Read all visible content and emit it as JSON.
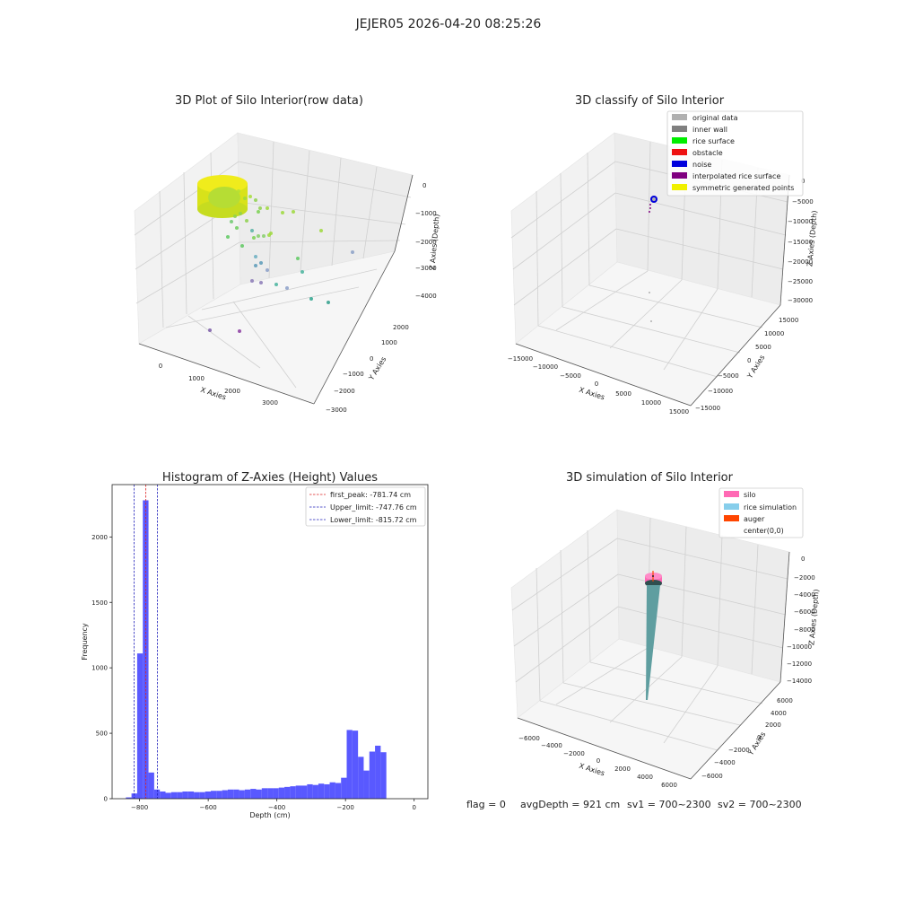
{
  "suptitle": "JEJER05 2026-04-20 08:25:26",
  "status": {
    "flag": "flag = 0",
    "avg": "avgDepth = 921 cm",
    "sv1": "sv1 = 700~2300",
    "sv2": "sv2 = 700~2300"
  },
  "chart_data": [
    {
      "type": "scatter",
      "title": "3D Plot of Silo Interior(row data)",
      "xlabel": "X Axies",
      "ylabel": "Y Axies",
      "zlabel": "Z Axies (Depth)",
      "xticks": [
        "0",
        "1000",
        "2000",
        "3000"
      ],
      "yticks": [
        "−3000",
        "−2000",
        "−1000",
        "0",
        "1000",
        "2000"
      ],
      "zticks": [
        "0",
        "−1000",
        "−2000",
        "−3000",
        "−4000"
      ]
    },
    {
      "type": "scatter",
      "title": "3D classify of Silo Interior",
      "xlabel": "X Axies",
      "ylabel": "Y Axies",
      "zlabel": "Z Axies (Depth)",
      "xticks": [
        "−15000",
        "−10000",
        "−5000",
        "0",
        "5000",
        "10000",
        "15000"
      ],
      "yticks": [
        "−15000",
        "−10000",
        "−5000",
        "0",
        "5000",
        "10000",
        "15000"
      ],
      "zticks": [
        "0",
        "−5000",
        "−10000",
        "−15000",
        "−20000",
        "−25000",
        "−30000"
      ],
      "legend": [
        {
          "label": "original data",
          "color": "#b0b0b0"
        },
        {
          "label": "inner wall",
          "color": "#808080"
        },
        {
          "label": "rice surface",
          "color": "#00ee00"
        },
        {
          "label": "obstacle",
          "color": "#ee1111"
        },
        {
          "label": "noise",
          "color": "#0000dd"
        },
        {
          "label": "interpolated rice surface",
          "color": "#800080"
        },
        {
          "label": "symmetric generated points",
          "color": "#f0f000"
        }
      ]
    },
    {
      "type": "bar",
      "title": "Histogram of Z-Axies (Height) Values",
      "xlabel": "Depth (cm)",
      "ylabel": "Frequency",
      "xlim": [
        -880,
        40
      ],
      "ylim": [
        0,
        2400
      ],
      "xticks": [
        -800,
        -600,
        -400,
        -200,
        0
      ],
      "xtick_labels": [
        "−800",
        "−600",
        "−400",
        "−200",
        "0"
      ],
      "yticks": [
        0,
        500,
        1000,
        1500,
        2000
      ],
      "bin_start": -840,
      "bin_width": 16.5,
      "values": [
        10,
        40,
        1110,
        2280,
        200,
        70,
        55,
        45,
        50,
        50,
        55,
        55,
        50,
        50,
        55,
        60,
        60,
        65,
        70,
        70,
        65,
        70,
        75,
        70,
        80,
        80,
        80,
        85,
        90,
        95,
        100,
        100,
        110,
        105,
        115,
        110,
        125,
        120,
        160,
        525,
        520,
        320,
        215,
        360,
        405,
        355
      ],
      "color": "#5050ff",
      "vlines": [
        {
          "label": "first_peak: -781.74 cm",
          "x": -781.74,
          "color": "#dd2222"
        },
        {
          "label": "Upper_limit: -747.76 cm",
          "x": -747.76,
          "color": "#2222bb"
        },
        {
          "label": "Lower_limit: -815.72 cm",
          "x": -815.72,
          "color": "#2222bb"
        }
      ]
    },
    {
      "type": "area",
      "title": "3D simulation of Silo Interior",
      "xlabel": "X Axies",
      "ylabel": "Y Axies",
      "zlabel": "Z Axies (Depth)",
      "xticks": [
        "−6000",
        "−4000",
        "−2000",
        "0",
        "2000",
        "4000",
        "6000"
      ],
      "yticks": [
        "−6000",
        "−4000",
        "−2000",
        "0",
        "2000",
        "4000",
        "6000"
      ],
      "zticks": [
        "0",
        "−2000",
        "−4000",
        "−6000",
        "−8000",
        "−10000",
        "−12000",
        "−14000"
      ],
      "legend": [
        {
          "label": "silo",
          "color": "#ff69b4"
        },
        {
          "label": "rice simulation",
          "color": "#87ceeb"
        },
        {
          "label": "auger",
          "color": "#ff4500"
        },
        {
          "label": "center(0,0)",
          "color": "#ffffff"
        }
      ]
    }
  ]
}
